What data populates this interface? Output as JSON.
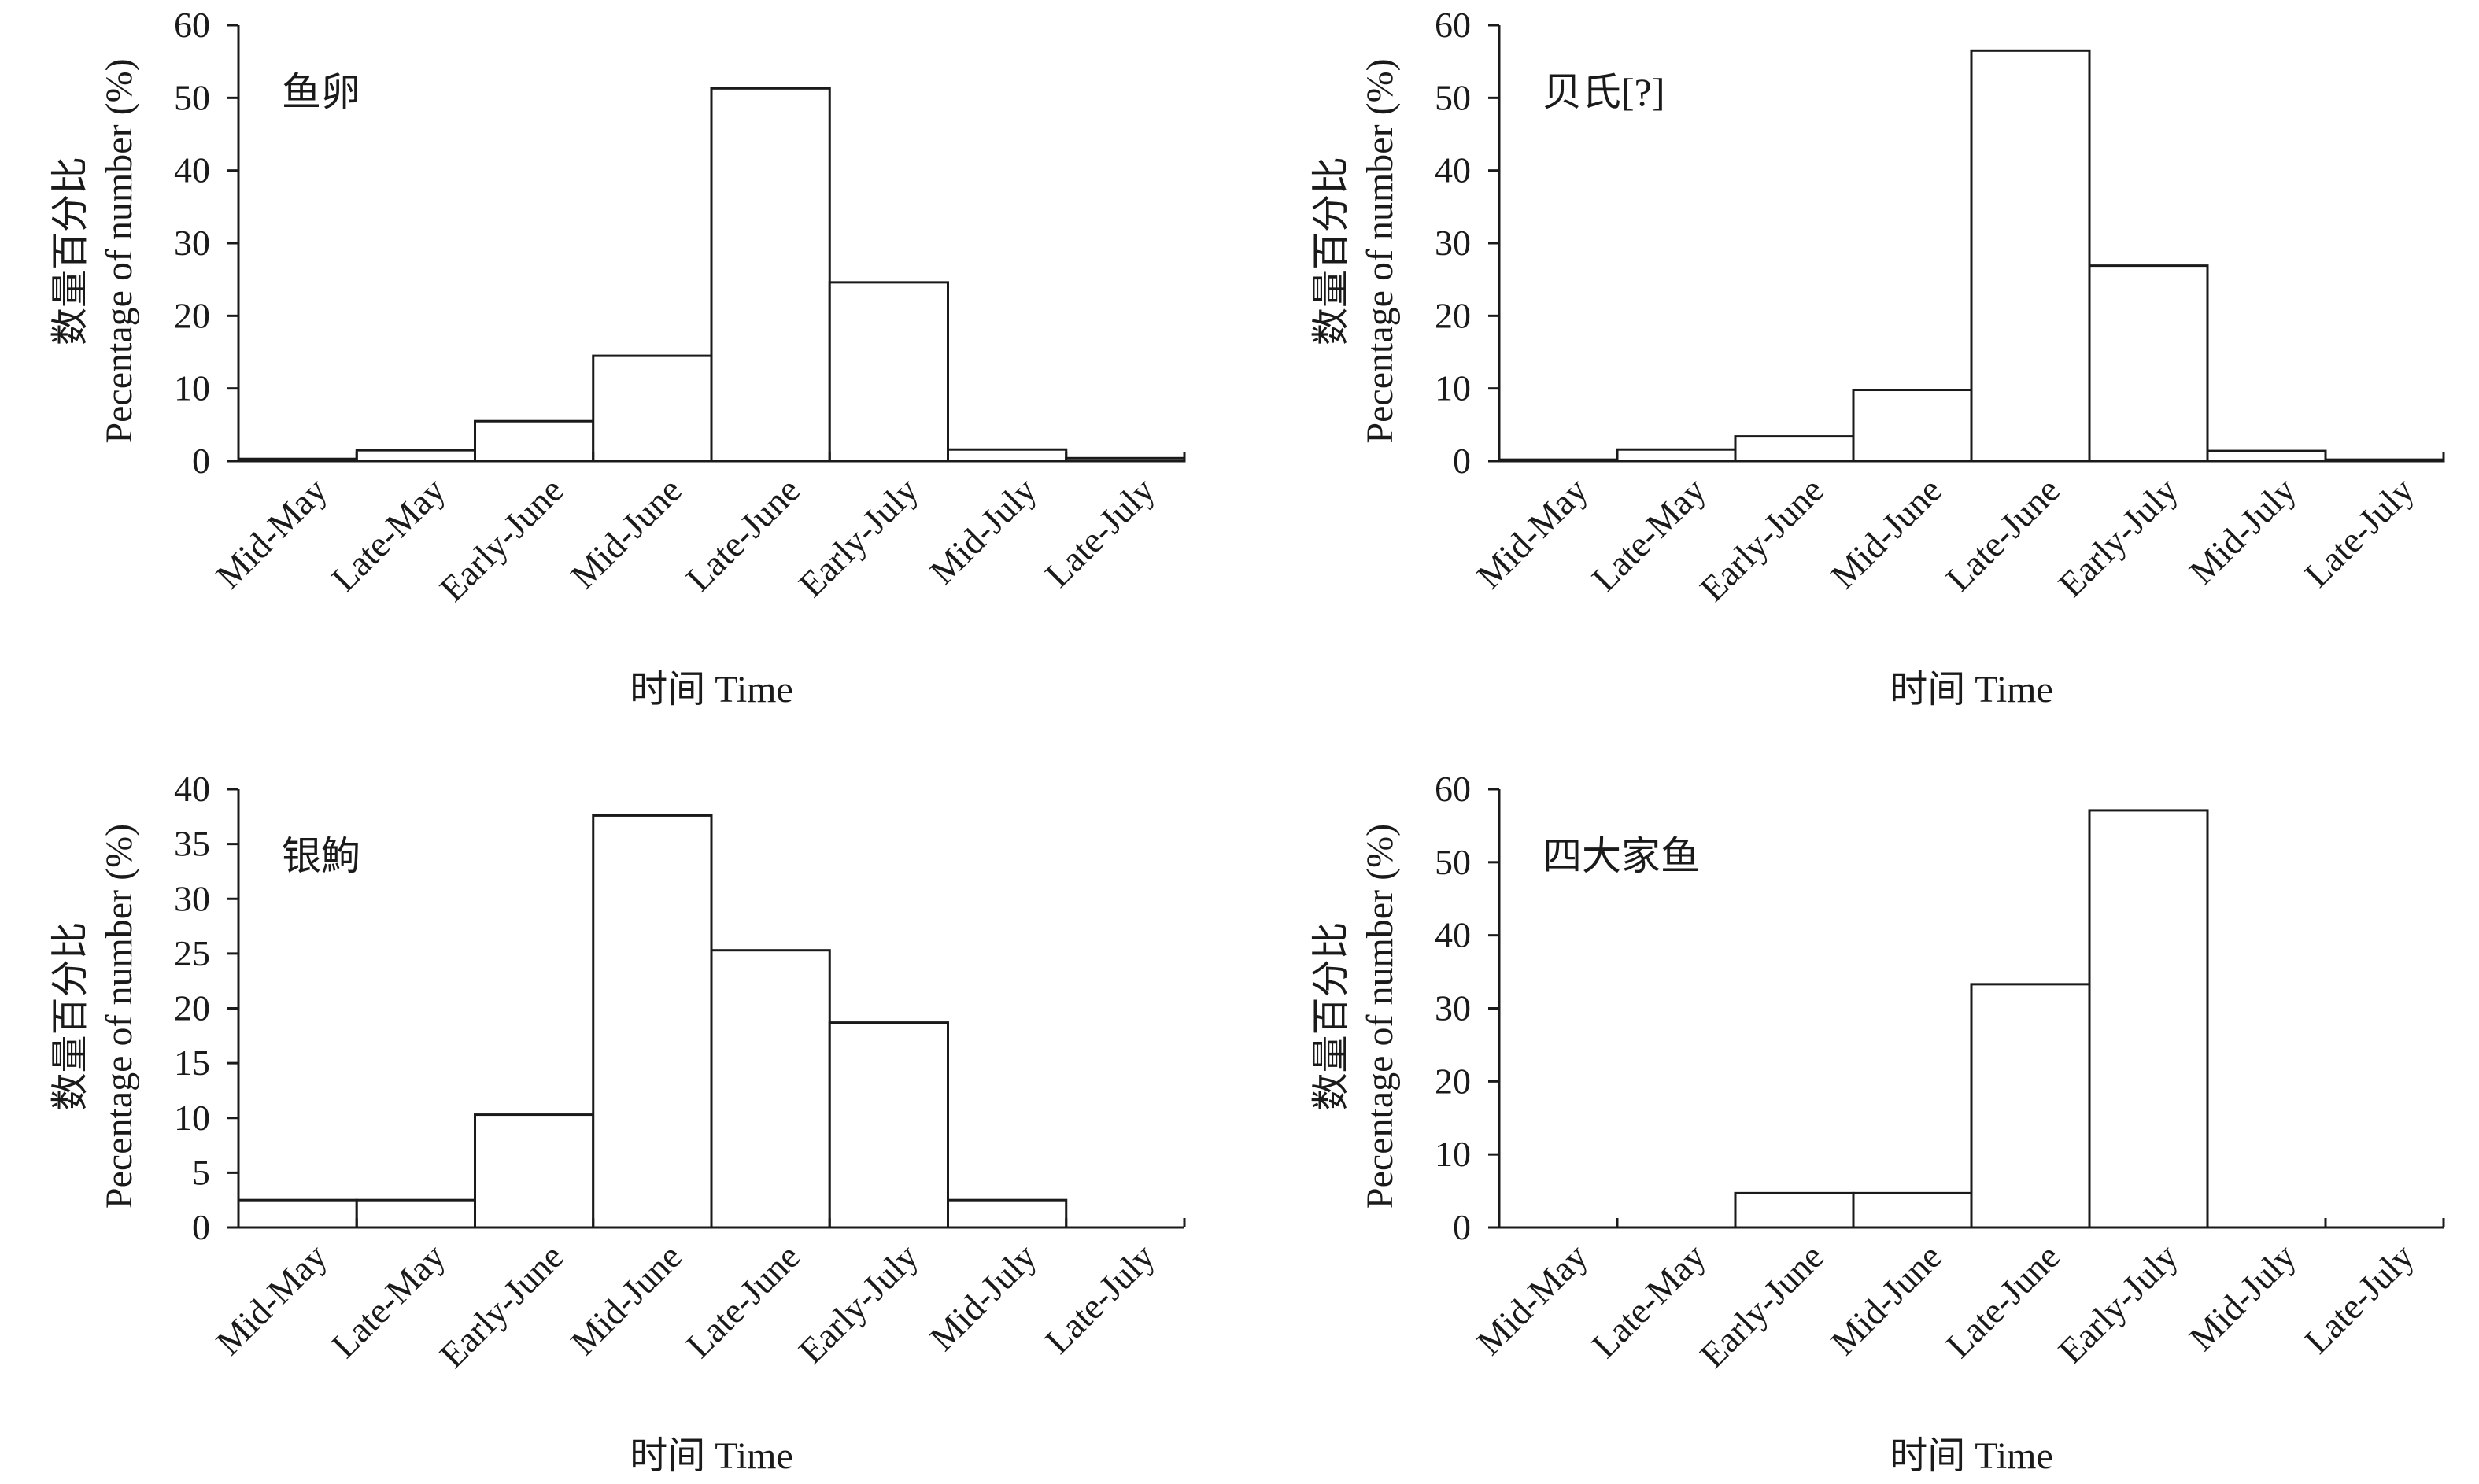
{
  "chart_data": [
    {
      "type": "bar",
      "title": "鱼卵",
      "categories": [
        "Mid-May",
        "Late-May",
        "Early-June",
        "Mid-June",
        "Late-June",
        "Early-July",
        "Mid-July",
        "Late-July"
      ],
      "values": [
        0.3,
        1.5,
        5.5,
        14.5,
        51.3,
        24.6,
        1.6,
        0.4
      ],
      "xlabel": "时间 Time",
      "ylabel_cn": "数量百分比",
      "ylabel_en": "Pecentage of number (%)",
      "ylim": [
        0,
        60
      ],
      "yticks": [
        0,
        10,
        20,
        30,
        40,
        50,
        60
      ]
    },
    {
      "type": "bar",
      "title": "贝氏[?]",
      "categories": [
        "Mid-May",
        "Late-May",
        "Early-June",
        "Mid-June",
        "Late-June",
        "Early-July",
        "Mid-July",
        "Late-July"
      ],
      "values": [
        0.2,
        1.6,
        3.4,
        9.8,
        56.5,
        26.9,
        1.4,
        0.2
      ],
      "xlabel": "时间 Time",
      "ylabel_cn": "数量百分比",
      "ylabel_en": "Pecentage of number (%)",
      "ylim": [
        0,
        60
      ],
      "yticks": [
        0,
        10,
        20,
        30,
        40,
        50,
        60
      ]
    },
    {
      "type": "bar",
      "title": "银鮈",
      "categories": [
        "Mid-May",
        "Late-May",
        "Early-June",
        "Mid-June",
        "Late-June",
        "Early-July",
        "Mid-July",
        "Late-July"
      ],
      "values": [
        2.5,
        2.5,
        10.3,
        37.6,
        25.3,
        18.7,
        2.5,
        0
      ],
      "xlabel": "时间 Time",
      "ylabel_cn": "数量百分比",
      "ylabel_en": "Pecentage of number (%)",
      "ylim": [
        0,
        40
      ],
      "yticks": [
        0,
        5,
        10,
        15,
        20,
        25,
        30,
        35,
        40
      ]
    },
    {
      "type": "bar",
      "title": "四大家鱼",
      "categories": [
        "Mid-May",
        "Late-May",
        "Early-June",
        "Mid-June",
        "Late-June",
        "Early-July",
        "Mid-July",
        "Late-July"
      ],
      "values": [
        0,
        0,
        4.7,
        4.7,
        33.3,
        57.1,
        0,
        0
      ],
      "xlabel": "时间 Time",
      "ylabel_cn": "数量百分比",
      "ylabel_en": "Pecentage of number (%)",
      "ylim": [
        0,
        60
      ],
      "yticks": [
        0,
        10,
        20,
        30,
        40,
        50,
        60
      ]
    }
  ]
}
